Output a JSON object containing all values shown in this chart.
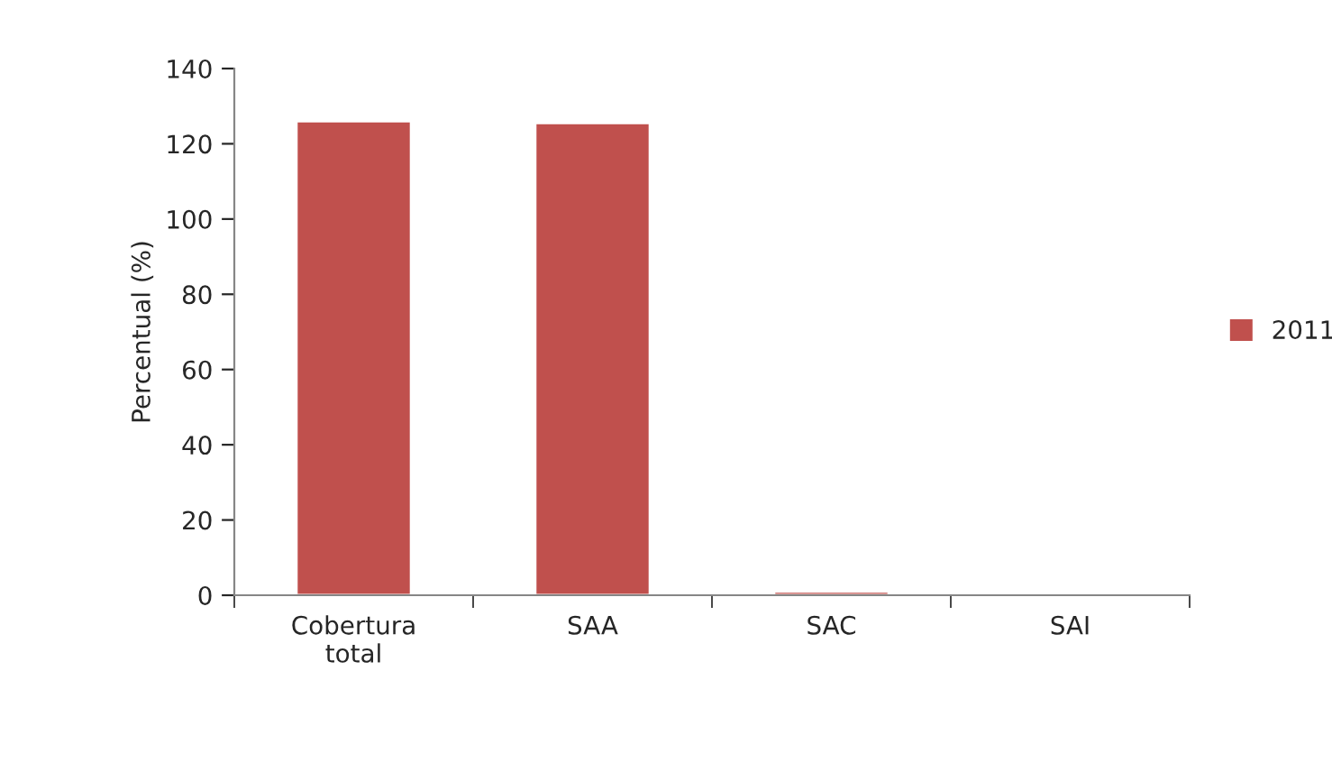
{
  "chart_data": {
    "type": "bar",
    "ylabel": "Percentual (%)",
    "categories": [
      "Cobertura\ntotal",
      "SAA",
      "SAC",
      "SAI"
    ],
    "series": [
      {
        "name": "2011",
        "color": "#c0504d",
        "values": [
          126,
          125.5,
          1,
          null
        ]
      }
    ],
    "ylim": [
      0,
      140
    ],
    "yticks": [
      0,
      20,
      40,
      60,
      80,
      100,
      120,
      140
    ],
    "grid": false,
    "legend": "right"
  }
}
